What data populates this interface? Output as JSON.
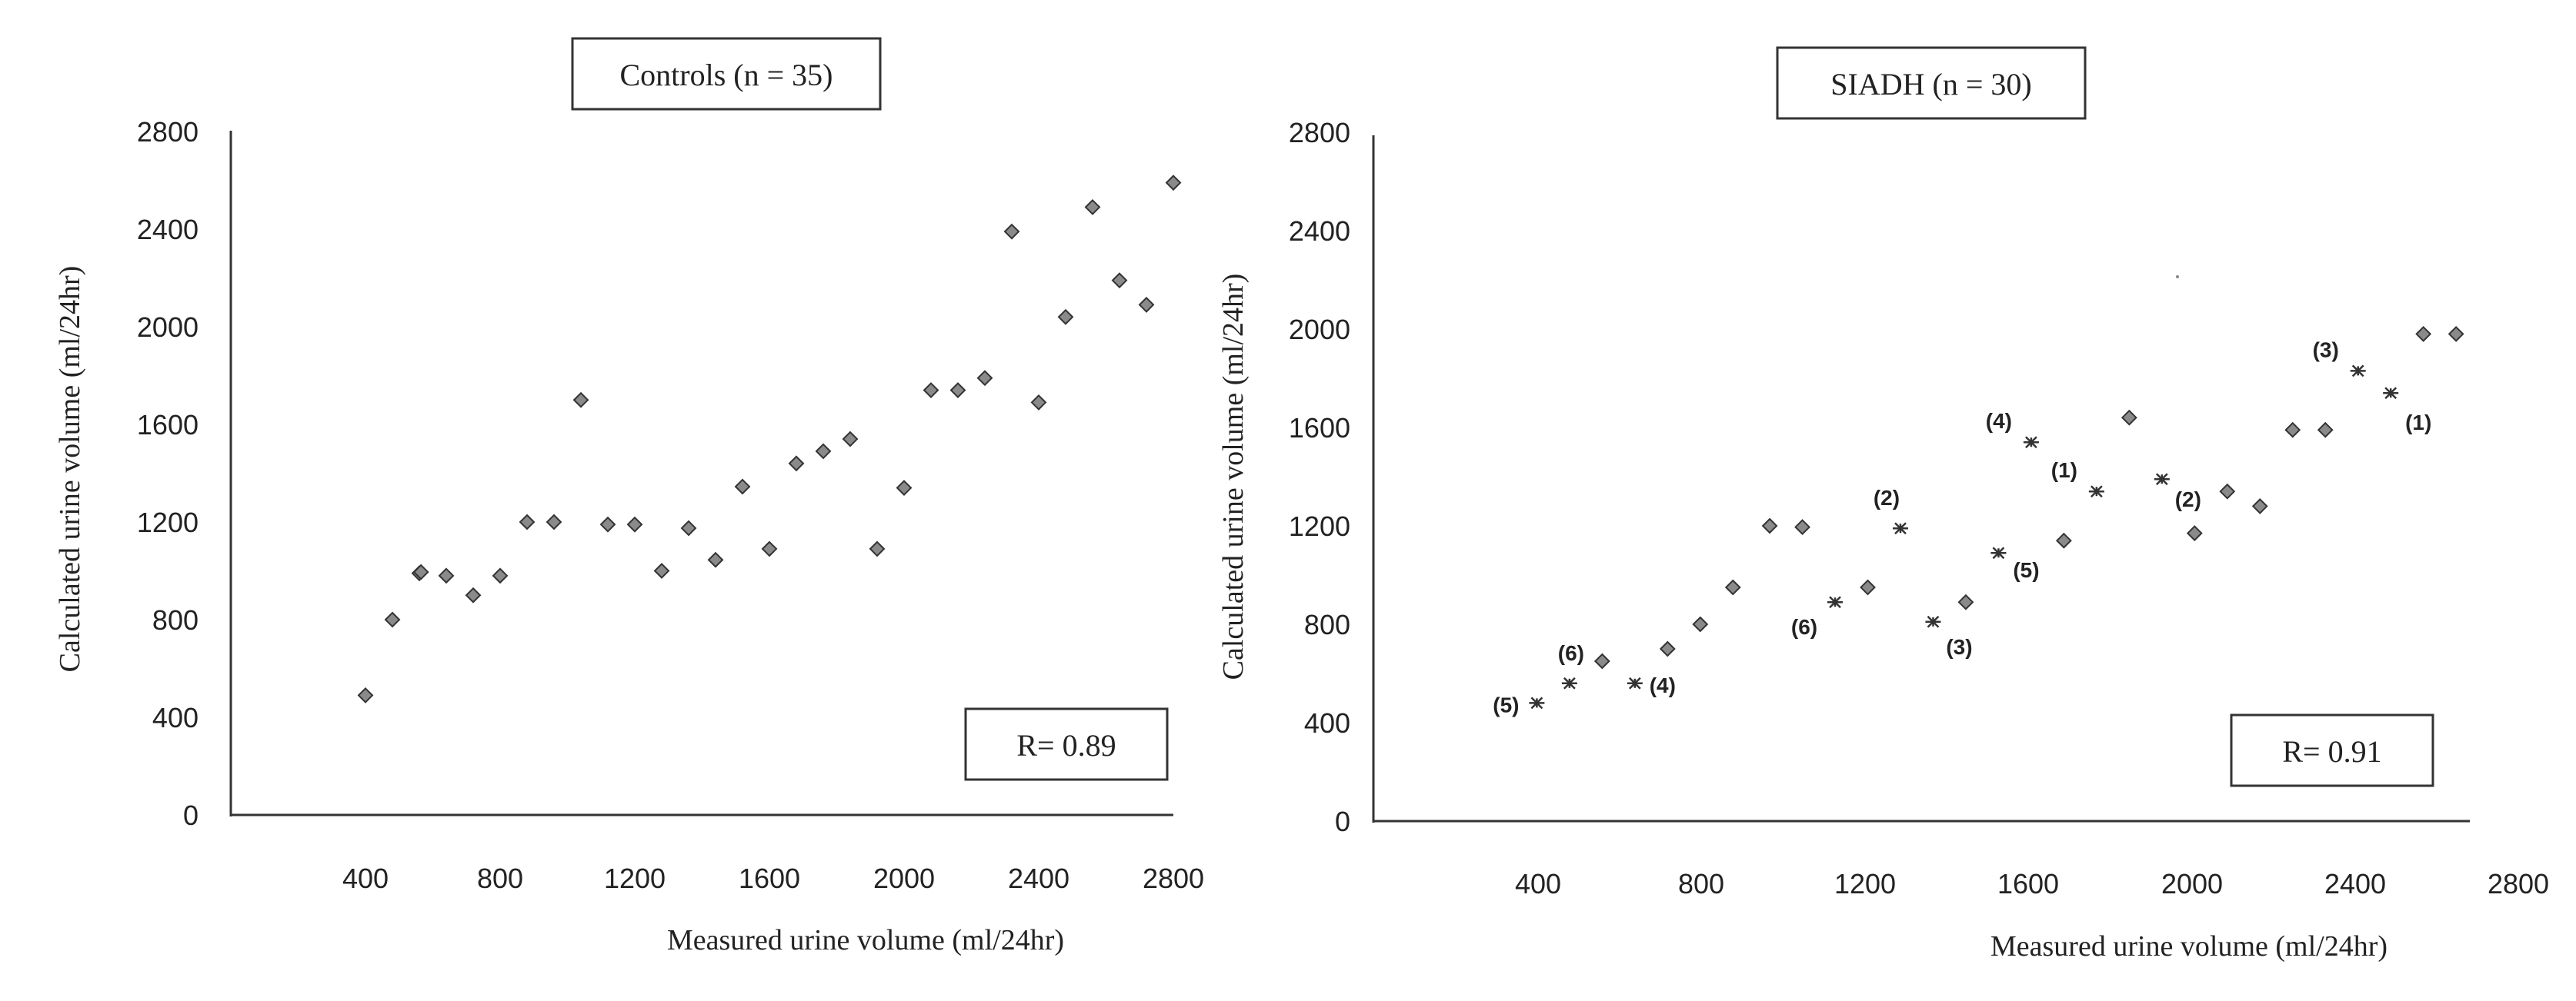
{
  "chart_data": [
    {
      "type": "scatter",
      "title": "Controls (n = 35)",
      "xlabel": "Measured urine volume (ml/24hr)",
      "ylabel": "Calculated urine volume (ml/24hr)",
      "xlim": [
        0,
        2800
      ],
      "ylim": [
        0,
        2800
      ],
      "xticks": [
        "400",
        "800",
        "1200",
        "1600",
        "2000",
        "2400",
        "2800"
      ],
      "yticks": [
        "0",
        "400",
        "800",
        "1200",
        "1600",
        "2000",
        "2400",
        "2800"
      ],
      "r_label": "R= 0.89",
      "grid": false,
      "series": [
        {
          "marker": "diamond",
          "points": [
            [
              400,
              490
            ],
            [
              480,
              800
            ],
            [
              560,
              990
            ],
            [
              565,
              995
            ],
            [
              640,
              980
            ],
            [
              720,
              900
            ],
            [
              800,
              980
            ],
            [
              880,
              1200
            ],
            [
              960,
              1200
            ],
            [
              1040,
              1700
            ],
            [
              1120,
              1190
            ],
            [
              1200,
              1190
            ],
            [
              1280,
              1000
            ],
            [
              1360,
              1175
            ],
            [
              1440,
              1045
            ],
            [
              1520,
              1345
            ],
            [
              1600,
              1090
            ],
            [
              1680,
              1440
            ],
            [
              1760,
              1490
            ],
            [
              1840,
              1540
            ],
            [
              1920,
              1090
            ],
            [
              2000,
              1340
            ],
            [
              2080,
              1740
            ],
            [
              2160,
              1740
            ],
            [
              2240,
              1790
            ],
            [
              2320,
              2390
            ],
            [
              2400,
              1690
            ],
            [
              2480,
              2040
            ],
            [
              2560,
              2490
            ],
            [
              2640,
              2190
            ],
            [
              2720,
              2090
            ],
            [
              2800,
              2590
            ]
          ]
        }
      ]
    },
    {
      "type": "scatter",
      "title": "SIADH (n = 30)",
      "xlabel": "Measured urine volume (ml/24hr)",
      "ylabel": "Calculated urine volume (ml/24hr)",
      "xlim": [
        0,
        2800
      ],
      "ylim": [
        0,
        2800
      ],
      "xticks": [
        "400",
        "800",
        "1200",
        "1600",
        "2000",
        "2400",
        "2800"
      ],
      "yticks": [
        "0",
        "400",
        "800",
        "1200",
        "1600",
        "2000",
        "2400",
        "2800"
      ],
      "r_label": "R= 0.91",
      "grid": false,
      "series": [
        {
          "marker": "diamond",
          "points": [
            [
              560,
              650
            ],
            [
              720,
              700
            ],
            [
              800,
              800
            ],
            [
              880,
              950
            ],
            [
              970,
              1200
            ],
            [
              1050,
              1195
            ],
            [
              1210,
              950
            ],
            [
              1450,
              890
            ],
            [
              1690,
              1140
            ],
            [
              1850,
              1640
            ],
            [
              2010,
              1170
            ],
            [
              2090,
              1340
            ],
            [
              2170,
              1280
            ],
            [
              2250,
              1590
            ],
            [
              2330,
              1590
            ],
            [
              2570,
              1980
            ],
            [
              2650,
              1980
            ]
          ]
        },
        {
          "marker": "asterisk",
          "points": [
            [
              400,
              480
            ],
            [
              480,
              560
            ],
            [
              640,
              560
            ],
            [
              1130,
              890
            ],
            [
              1290,
              1190
            ],
            [
              1370,
              810
            ],
            [
              1530,
              1090
            ],
            [
              1610,
              1540
            ],
            [
              1770,
              1340
            ],
            [
              1930,
              1390
            ],
            [
              2410,
              1830
            ],
            [
              2490,
              1740
            ]
          ],
          "labels": [
            "(5)",
            "(6)",
            "(4)",
            "(6)",
            "(2)",
            "(3)",
            "(5)",
            "(4)",
            "(1)",
            "(2)",
            "(3)",
            "(1)"
          ]
        }
      ]
    }
  ]
}
